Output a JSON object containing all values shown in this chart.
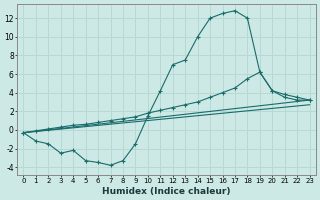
{
  "xlabel": "Humidex (Indice chaleur)",
  "xlim": [
    -0.5,
    23.5
  ],
  "ylim": [
    -4.8,
    13.5
  ],
  "yticks": [
    -4,
    -2,
    0,
    2,
    4,
    6,
    8,
    10,
    12
  ],
  "xticks": [
    0,
    1,
    2,
    3,
    4,
    5,
    6,
    7,
    8,
    9,
    10,
    11,
    12,
    13,
    14,
    15,
    16,
    17,
    18,
    19,
    20,
    21,
    22,
    23
  ],
  "background_color": "#cce9e5",
  "grid_color": "#b8d8d4",
  "line_color": "#1a6b6b",
  "curve1_x": [
    0,
    1,
    2,
    3,
    4,
    5,
    6,
    7,
    8,
    9,
    10,
    11,
    12,
    13,
    14,
    15,
    16,
    17,
    18,
    19,
    20,
    21,
    22,
    23
  ],
  "curve1_y": [
    -0.3,
    -1.2,
    -1.5,
    -2.5,
    -2.2,
    -3.3,
    -3.5,
    -3.8,
    -3.3,
    -1.5,
    1.5,
    4.2,
    7.0,
    7.5,
    10.0,
    12.0,
    12.5,
    12.8,
    12.0,
    6.2,
    4.2,
    3.5,
    3.2,
    3.2
  ],
  "curve2_x": [
    0,
    1,
    2,
    3,
    4,
    5,
    6,
    7,
    8,
    9,
    10,
    11,
    12,
    13,
    14,
    15,
    16,
    17,
    18,
    19,
    20,
    21,
    22,
    23
  ],
  "curve2_y": [
    -0.3,
    -0.1,
    0.1,
    0.3,
    0.5,
    0.6,
    0.8,
    1.0,
    1.2,
    1.4,
    1.8,
    2.1,
    2.4,
    2.7,
    3.0,
    3.5,
    4.0,
    4.5,
    5.5,
    6.2,
    4.2,
    3.8,
    3.5,
    3.2
  ],
  "line1_x": [
    0,
    23
  ],
  "line1_y": [
    -0.3,
    2.7
  ],
  "line2_x": [
    0,
    23
  ],
  "line2_y": [
    -0.3,
    3.2
  ]
}
